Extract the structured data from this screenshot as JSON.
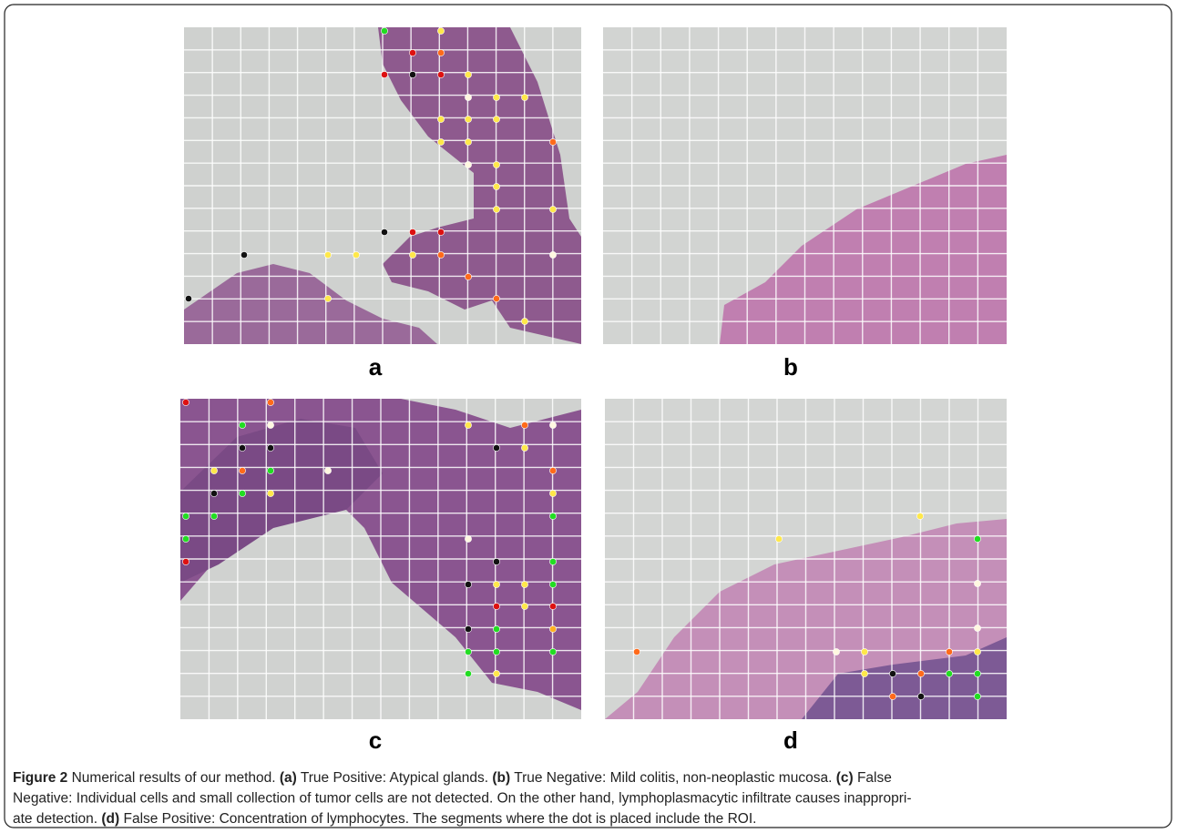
{
  "panels": [
    {
      "label": "a"
    },
    {
      "label": "b"
    },
    {
      "label": "c"
    },
    {
      "label": "d"
    }
  ],
  "caption": {
    "lines": [
      [
        {
          "text": "Figure 2",
          "bold": true
        },
        {
          "text": " Numerical results of our method. "
        },
        {
          "text": "(a)",
          "bold": true
        },
        {
          "text": " True Positive: Atypical glands. "
        },
        {
          "text": "(b)",
          "bold": true
        },
        {
          "text": " True Negative: Mild colitis, non-neoplastic mucosa. "
        },
        {
          "text": "(c)",
          "bold": true
        },
        {
          "text": " False"
        }
      ],
      [
        {
          "text": "Negative: Individual cells and small collection of tumor cells are not detected. On the other hand, lymphoplasmacytic infiltrate causes inappropri-"
        }
      ],
      [
        {
          "text": "ate detection. "
        },
        {
          "text": "(d)",
          "bold": true
        },
        {
          "text": " False Positive: Concentration of lymphocytes. The segments where the dot is placed include the ROI."
        }
      ]
    ]
  }
}
